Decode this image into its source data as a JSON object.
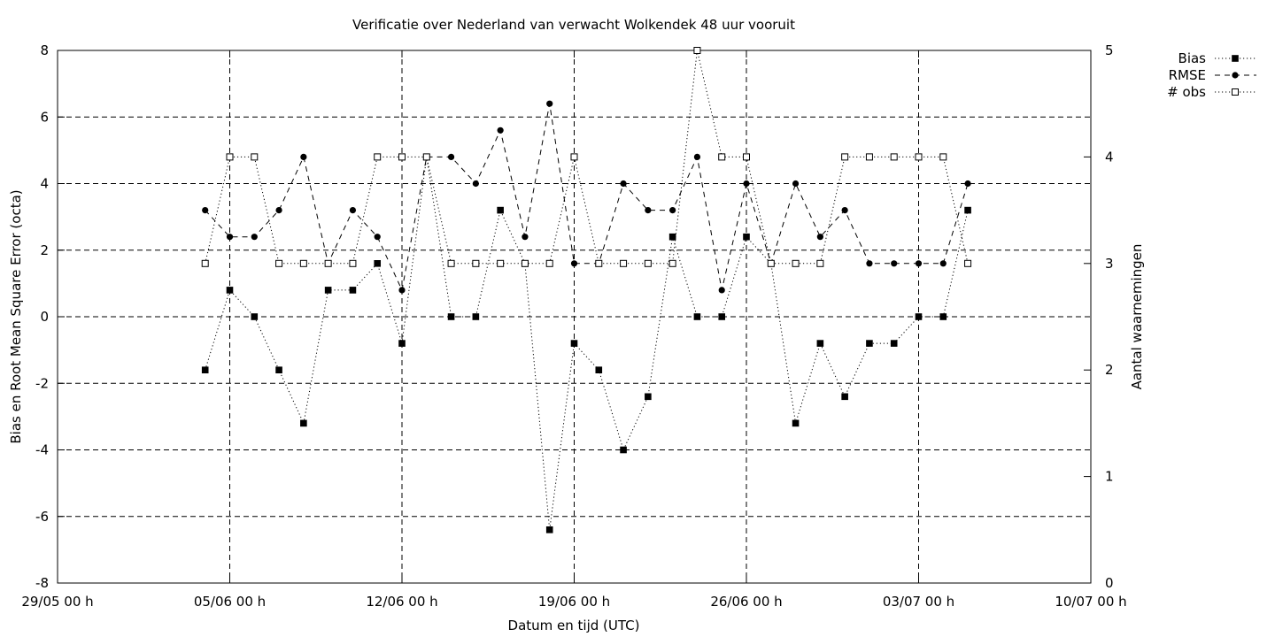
{
  "chart_data": {
    "type": "line",
    "title": "Verificatie over Nederland van verwacht Wolkendek 48 uur vooruit",
    "xlabel": "Datum en tijd (UTC)",
    "ylabel": "Bias en Root Mean Square Error (octa)",
    "y2label": "Aantal waarnemingen",
    "xlim": [
      "2023-05-29",
      "2023-07-10"
    ],
    "ylim": [
      -8,
      8
    ],
    "y2lim": [
      0,
      5
    ],
    "grid": true,
    "legend_position": "top-right",
    "x_ticks": [
      {
        "value": "2023-05-29",
        "label": "29/05 00 h"
      },
      {
        "value": "2023-06-05",
        "label": "05/06 00 h"
      },
      {
        "value": "2023-06-12",
        "label": "12/06 00 h"
      },
      {
        "value": "2023-06-19",
        "label": "19/06 00 h"
      },
      {
        "value": "2023-06-26",
        "label": "26/06 00 h"
      },
      {
        "value": "2023-07-03",
        "label": "03/07 00 h"
      },
      {
        "value": "2023-07-10",
        "label": "10/07 00 h"
      }
    ],
    "y_ticks": [
      {
        "value": -8,
        "label": "-8"
      },
      {
        "value": -6,
        "label": "-6"
      },
      {
        "value": -4,
        "label": "-4"
      },
      {
        "value": -2,
        "label": "-2"
      },
      {
        "value": 0,
        "label": "0"
      },
      {
        "value": 2,
        "label": "2"
      },
      {
        "value": 4,
        "label": "4"
      },
      {
        "value": 6,
        "label": "6"
      },
      {
        "value": 8,
        "label": "8"
      }
    ],
    "y2_ticks": [
      {
        "value": 0,
        "label": "0"
      },
      {
        "value": 1,
        "label": "1"
      },
      {
        "value": 2,
        "label": "2"
      },
      {
        "value": 3,
        "label": "3"
      },
      {
        "value": 4,
        "label": "4"
      },
      {
        "value": 5,
        "label": "5"
      }
    ],
    "x": [
      "2023-06-04",
      "2023-06-05",
      "2023-06-06",
      "2023-06-07",
      "2023-06-08",
      "2023-06-09",
      "2023-06-10",
      "2023-06-11",
      "2023-06-12",
      "2023-06-13",
      "2023-06-14",
      "2023-06-15",
      "2023-06-16",
      "2023-06-17",
      "2023-06-18",
      "2023-06-19",
      "2023-06-20",
      "2023-06-21",
      "2023-06-22",
      "2023-06-23",
      "2023-06-24",
      "2023-06-25",
      "2023-06-26",
      "2023-06-27",
      "2023-06-28",
      "2023-06-29",
      "2023-06-30",
      "2023-07-01",
      "2023-07-02",
      "2023-07-03",
      "2023-07-04",
      "2023-07-05"
    ],
    "series": [
      {
        "name": "Bias",
        "axis": "y",
        "style": "dotted",
        "marker": "filled-square",
        "values": [
          -1.6,
          0.8,
          0,
          -1.6,
          -3.2,
          0.8,
          0.8,
          1.6,
          -0.8,
          4.8,
          0,
          0,
          3.2,
          1.6,
          -6.4,
          -0.8,
          -1.6,
          -4,
          -2.4,
          2.4,
          0,
          0,
          2.4,
          1.6,
          -3.2,
          -0.8,
          -2.4,
          -0.8,
          -0.8,
          0,
          0,
          3.2
        ]
      },
      {
        "name": "RMSE",
        "axis": "y",
        "style": "dashed",
        "marker": "filled-circle",
        "values": [
          3.2,
          2.4,
          2.4,
          3.2,
          4.8,
          1.6,
          3.2,
          2.4,
          0.8,
          4.8,
          4.8,
          4,
          5.6,
          2.4,
          6.4,
          1.6,
          1.6,
          4,
          3.2,
          3.2,
          4.8,
          0.8,
          4,
          1.6,
          4,
          2.4,
          3.2,
          1.6,
          1.6,
          1.6,
          1.6,
          4
        ]
      },
      {
        "name": "# obs",
        "axis": "y2",
        "style": "dotted",
        "marker": "open-square",
        "values": [
          3,
          4,
          4,
          3,
          3,
          3,
          3,
          4,
          4,
          4,
          3,
          3,
          3,
          3,
          3,
          4,
          3,
          3,
          3,
          3,
          5,
          4,
          4,
          3,
          3,
          3,
          4,
          4,
          4,
          4,
          4,
          3
        ]
      }
    ]
  }
}
